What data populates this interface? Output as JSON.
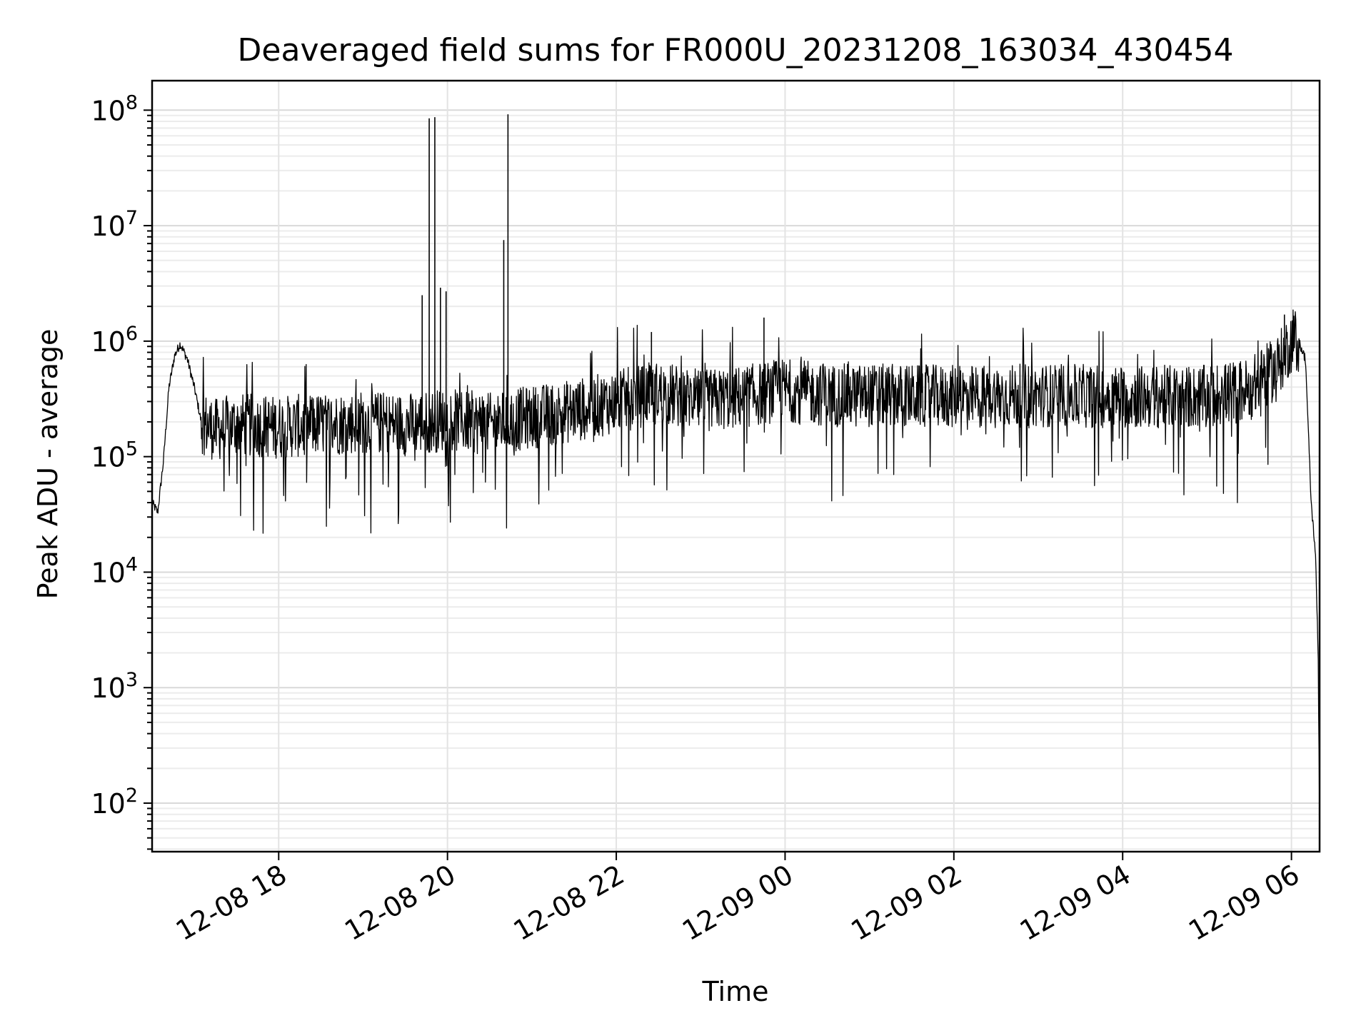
{
  "chart_data": {
    "type": "line",
    "title": "Deaveraged field sums for FR000U_20231208_163034_430454",
    "xlabel": "Time",
    "ylabel": "Peak ADU - average",
    "x_start": "2023-12-08 16:30",
    "x_end": "2023-12-09 06:20",
    "xlim": [
      "2023-12-08 16:30",
      "2023-12-09 06:20"
    ],
    "ylim": [
      38,
      180000000
    ],
    "y_scale": "log",
    "grid": true,
    "x_ticks": [
      {
        "t": "2023-12-08 18:00",
        "label": "12-08 18"
      },
      {
        "t": "2023-12-08 20:00",
        "label": "12-08 20"
      },
      {
        "t": "2023-12-08 22:00",
        "label": "12-08 22"
      },
      {
        "t": "2023-12-09 00:00",
        "label": "12-09 00"
      },
      {
        "t": "2023-12-09 02:00",
        "label": "12-09 02"
      },
      {
        "t": "2023-12-09 04:00",
        "label": "12-09 04"
      },
      {
        "t": "2023-12-09 06:00",
        "label": "12-09 06"
      }
    ],
    "y_ticks": [
      {
        "v": 100,
        "base": "10",
        "exp": "2"
      },
      {
        "v": 1000,
        "base": "10",
        "exp": "3"
      },
      {
        "v": 10000,
        "base": "10",
        "exp": "4"
      },
      {
        "v": 100000,
        "base": "10",
        "exp": "5"
      },
      {
        "v": 1000000,
        "base": "10",
        "exp": "6"
      },
      {
        "v": 10000000,
        "base": "10",
        "exp": "7"
      },
      {
        "v": 100000000,
        "base": "10",
        "exp": "8"
      }
    ],
    "series": [
      {
        "line_color": "#000000",
        "x": [
          "2023-12-08 16:30",
          "2023-12-08 16:34",
          "2023-12-08 16:38",
          "2023-12-08 16:42",
          "2023-12-08 16:46",
          "2023-12-08 16:50",
          "2023-12-08 16:55",
          "2023-12-08 17:00",
          "2023-12-08 17:05",
          "2023-12-08 17:15",
          "2023-12-08 17:30",
          "2023-12-08 18:00",
          "2023-12-08 18:30",
          "2023-12-08 19:00",
          "2023-12-08 19:30",
          "2023-12-08 20:00",
          "2023-12-08 20:30",
          "2023-12-08 21:00",
          "2023-12-08 21:30",
          "2023-12-08 22:00",
          "2023-12-08 22:30",
          "2023-12-08 23:00",
          "2023-12-08 23:30",
          "2023-12-09 00:00",
          "2023-12-09 00:30",
          "2023-12-09 01:00",
          "2023-12-09 02:00",
          "2023-12-09 03:00",
          "2023-12-09 04:00",
          "2023-12-09 05:00",
          "2023-12-09 05:30",
          "2023-12-09 05:50",
          "2023-12-09 06:00",
          "2023-12-09 06:05",
          "2023-12-09 06:10",
          "2023-12-09 06:14",
          "2023-12-09 06:17",
          "2023-12-09 06:19",
          "2023-12-09 06:20"
        ],
        "y": [
          40000,
          33000,
          90000,
          400000,
          750000,
          950000,
          700000,
          400000,
          200000,
          170000,
          190000,
          180000,
          190000,
          200000,
          190000,
          210000,
          190000,
          220000,
          250000,
          300000,
          360000,
          300000,
          330000,
          380000,
          340000,
          340000,
          330000,
          340000,
          330000,
          330000,
          380000,
          600000,
          1000000,
          1000000,
          700000,
          40000,
          15000,
          2000,
          70
        ]
      }
    ],
    "spikes": [
      {
        "t": "2023-12-08 19:42",
        "y": 2500000
      },
      {
        "t": "2023-12-08 19:47",
        "y": 85000000
      },
      {
        "t": "2023-12-08 19:51",
        "y": 87000000
      },
      {
        "t": "2023-12-08 19:55",
        "y": 2900000
      },
      {
        "t": "2023-12-08 19:59",
        "y": 2700000
      },
      {
        "t": "2023-12-08 20:40",
        "y": 7500000
      },
      {
        "t": "2023-12-08 20:43",
        "y": 92000000
      },
      {
        "t": "2023-12-08 22:25",
        "y": 1200000
      },
      {
        "t": "2023-12-08 23:45",
        "y": 1600000
      },
      {
        "t": "2023-12-09 05:55",
        "y": 1700000
      }
    ]
  }
}
